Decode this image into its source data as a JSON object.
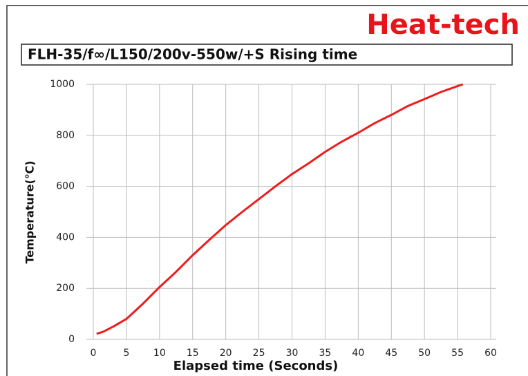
{
  "chart_data": {
    "type": "line",
    "brand": "Heat-tech",
    "title": "FLH-35/f∞/L150/200v-550w/+S Rising time",
    "x_label": "Elapsed time (Seconds)",
    "y_label": "Temperature(℃)",
    "x": [
      0.5,
      1.5,
      3,
      5,
      7.5,
      10,
      12.5,
      15,
      17.5,
      20,
      22.5,
      25,
      27.5,
      30,
      32.5,
      35,
      37.5,
      40,
      42.5,
      45,
      47.5,
      50,
      52.5,
      55,
      55.8
    ],
    "series": [
      {
        "name": "Temperature",
        "color": "#ee1c1c",
        "values": [
          22,
          30,
          50,
          80,
          140,
          205,
          265,
          330,
          390,
          448,
          500,
          550,
          600,
          648,
          690,
          735,
          775,
          810,
          848,
          880,
          915,
          942,
          970,
          993,
          1000
        ]
      }
    ],
    "xlim": [
      0,
      60
    ],
    "xticks": [
      0,
      5,
      10,
      15,
      20,
      25,
      30,
      35,
      40,
      45,
      50,
      55,
      60
    ],
    "ylim": [
      0,
      1000
    ],
    "yticks": [
      0,
      200,
      400,
      600,
      800,
      1000
    ],
    "grid": true
  }
}
